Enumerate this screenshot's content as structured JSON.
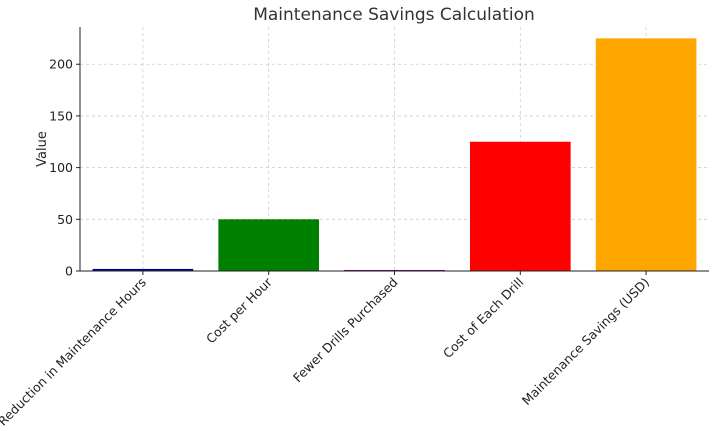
{
  "chart_data": {
    "type": "bar",
    "title": "Maintenance Savings Calculation",
    "xlabel": "",
    "ylabel": "Value",
    "categories": [
      "Reduction in Maintenance Hours",
      "Cost per Hour",
      "Fewer Drills Purchased",
      "Cost of Each Drill",
      "Maintenance Savings (USD)"
    ],
    "values": [
      2,
      50,
      1,
      125,
      225
    ],
    "colors": [
      "#0000a0",
      "#008000",
      "#800080",
      "#ff0000",
      "#ffa500"
    ],
    "ylim": [
      0,
      236
    ],
    "yticks": [
      0,
      50,
      100,
      150,
      200
    ],
    "grid": true
  }
}
